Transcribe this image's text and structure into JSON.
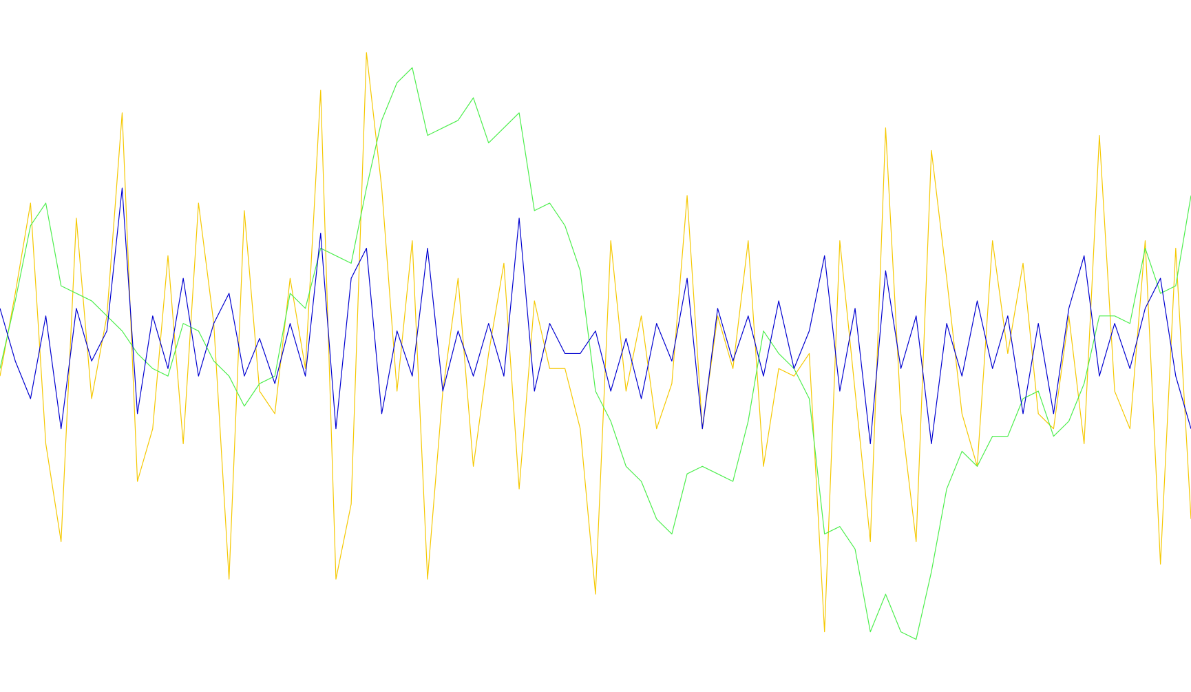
{
  "chart_data": {
    "type": "line",
    "ylim": [
      -45,
      47
    ],
    "series": [
      {
        "color": "#f5c800",
        "values": [
          -3,
          8,
          20,
          -12,
          -25,
          18,
          -6,
          5,
          32,
          -17,
          -10,
          13,
          -12,
          20,
          4,
          -30,
          19,
          -5,
          -8,
          10,
          -2,
          35,
          -30,
          -20,
          40,
          22,
          -5,
          15,
          -30,
          -5,
          10,
          -15,
          0,
          12,
          -18,
          7,
          -2,
          -2,
          -10,
          -32,
          15,
          -5,
          5,
          -10,
          -4,
          21,
          -10,
          5,
          -2,
          15,
          -15,
          -2,
          -3,
          0,
          -37,
          15,
          -5,
          -25,
          30,
          -8,
          -25,
          27,
          10,
          -8,
          -15,
          15,
          0,
          12,
          -8,
          -10,
          5,
          -12,
          29,
          -5,
          -10,
          15,
          -28,
          14,
          -22
        ]
      },
      {
        "color": "#4cee4c",
        "values": [
          -2,
          7,
          17,
          20,
          9,
          8,
          7,
          5,
          3,
          0,
          -2,
          -3,
          4,
          3,
          -1,
          -3,
          -7,
          -4,
          -3,
          8,
          6,
          14,
          13,
          12,
          22,
          31,
          36,
          38,
          29,
          30,
          31,
          34,
          28,
          30,
          32,
          19,
          20,
          17,
          11,
          -5,
          -9,
          -15,
          -17,
          -22,
          -24,
          -16,
          -15,
          -16,
          -17,
          -9,
          3,
          0,
          -2,
          -6,
          -24,
          -23,
          -26,
          -37,
          -32,
          -37,
          -38,
          -29,
          -18,
          -13,
          -15,
          -11,
          -11,
          -6,
          -5,
          -11,
          -9,
          -4,
          5,
          5,
          4,
          14,
          8,
          9,
          21
        ]
      },
      {
        "color": "#0000d0",
        "values": [
          6,
          -1,
          -6,
          5,
          -10,
          6,
          -1,
          3,
          22,
          -8,
          5,
          -2,
          10,
          -3,
          4,
          8,
          -3,
          2,
          -4,
          4,
          -3,
          16,
          -10,
          10,
          14,
          -8,
          3,
          -3,
          14,
          -5,
          3,
          -3,
          4,
          -3,
          18,
          -5,
          4,
          0,
          0,
          3,
          -5,
          2,
          -6,
          4,
          -1,
          10,
          -10,
          6,
          -1,
          5,
          -3,
          7,
          -2,
          3,
          13,
          -5,
          6,
          -12,
          11,
          -2,
          5,
          -12,
          4,
          -3,
          7,
          -2,
          5,
          -8,
          4,
          -8,
          6,
          13,
          -3,
          4,
          -2,
          6,
          10,
          -3,
          -10
        ]
      }
    ]
  }
}
